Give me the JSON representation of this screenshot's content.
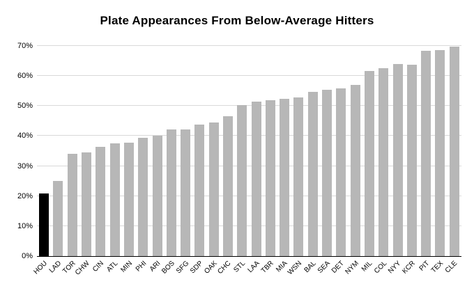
{
  "chart_data": {
    "type": "bar",
    "title": "Plate Appearances From Below-Average Hitters",
    "xlabel": "",
    "ylabel": "",
    "categories": [
      "HOU",
      "LAD",
      "TOR",
      "CHW",
      "CIN",
      "ATL",
      "MIN",
      "PHI",
      "ARI",
      "BOS",
      "SFG",
      "SDP",
      "OAK",
      "CHC",
      "STL",
      "LAA",
      "TBR",
      "MIA",
      "WSN",
      "BAL",
      "SEA",
      "DET",
      "NYM",
      "MIL",
      "COL",
      "NYY",
      "KCR",
      "PIT",
      "TEX",
      "CLE"
    ],
    "values": [
      20.9,
      25.0,
      34.0,
      34.6,
      36.4,
      37.6,
      37.7,
      39.3,
      40.1,
      42.3,
      42.3,
      43.7,
      44.4,
      46.6,
      50.3,
      51.5,
      52.0,
      52.5,
      52.8,
      54.7,
      55.3,
      55.8,
      57.0,
      61.6,
      62.5,
      63.9,
      63.8,
      68.3,
      68.7,
      69.8
    ],
    "value_unit": "%",
    "ylim": [
      0,
      70
    ],
    "y_tick_step": 10,
    "y_tick_labels": [
      "0%",
      "10%",
      "20%",
      "30%",
      "40%",
      "50%",
      "60%",
      "70%"
    ],
    "grid": true,
    "legend_position": "none",
    "bar_color": "#b7b7b7",
    "highlight_index": 0,
    "highlight_color": "#000000",
    "gridline_color": "#d9d9d9",
    "axis_color": "#000000",
    "background_color": "#ffffff",
    "label_rotation_deg": -45
  }
}
